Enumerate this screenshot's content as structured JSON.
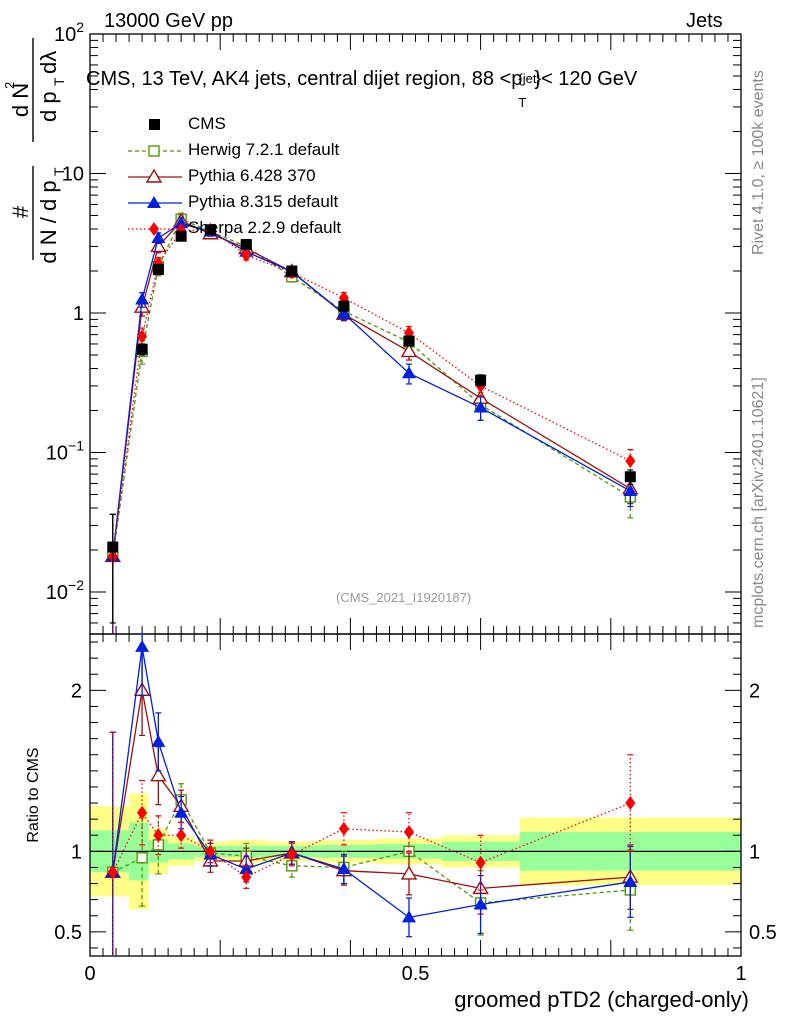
{
  "header": {
    "left": "13000 GeV pp",
    "right": "Jets"
  },
  "side_labels": {
    "rivet": "Rivet 4.1.0, ≥ 100k events",
    "mcplots": "mcplots.cern.ch [arXiv:2401.10621]"
  },
  "watermark": "(CMS_2021_I1920187)",
  "colors": {
    "cms": "#000000",
    "herwig": "#4e9a06",
    "pythia6": "#a01010",
    "pythia8": "#0020e0",
    "sherpa": "#ff0000",
    "band_inner": "#99ff99",
    "band_outer": "#ffff88"
  },
  "chart_data": [
    {
      "type": "scatter",
      "panel": "main",
      "title": "CMS, 13 TeV, AK4 jets, central dijet region, 88 <p_T^{jet}< 120 GeV",
      "title_parts": {
        "main": "CMS, 13 TeV, AK4 jets, central dijet region, 88 <p",
        "sup": "{jet}",
        "sub": "T",
        "tail": "}< 120 GeV"
      },
      "ylabel_parts": {
        "num": "#",
        "den": "d N / d p",
        "den_sub": "T",
        "num2": "d N",
        "num2_sup": "2",
        "den2": "d p",
        "den2_sub": "T",
        "den2_tail": " dλ"
      },
      "xlim": [
        0,
        1
      ],
      "ylim": [
        0.005,
        100
      ],
      "ylog": true,
      "y_ticks": [
        {
          "v": 100,
          "base": "10",
          "exp": "2"
        },
        {
          "v": 10,
          "base": "10",
          "exp": ""
        },
        {
          "v": 1,
          "base": "1",
          "exp": ""
        },
        {
          "v": 0.1,
          "base": "10",
          "exp": "−1"
        },
        {
          "v": 0.01,
          "base": "10",
          "exp": "−2"
        }
      ],
      "x": [
        0.035,
        0.08,
        0.105,
        0.14,
        0.185,
        0.24,
        0.31,
        0.39,
        0.49,
        0.6,
        0.83
      ],
      "series": [
        {
          "name": "CMS",
          "key": "cms",
          "marker": "square",
          "line": "none",
          "values": [
            0.021,
            0.55,
            2.05,
            3.55,
            3.95,
            3.1,
            2.0,
            1.12,
            0.63,
            0.33,
            0.067
          ],
          "errors": [
            0.015,
            0.05,
            0.1,
            0.15,
            0.15,
            0.12,
            0.08,
            0.06,
            0.04,
            0.03,
            0.008
          ]
        },
        {
          "name": "Herwig 7.2.1 default",
          "key": "herwig",
          "marker": "open-square",
          "line": "dashed",
          "values": [
            0.018,
            0.53,
            2.15,
            4.7,
            3.85,
            3.0,
            1.82,
            1.03,
            0.62,
            0.22,
            0.048
          ],
          "errors": [
            0.018,
            0.1,
            0.3,
            0.5,
            0.3,
            0.25,
            0.15,
            0.1,
            0.08,
            0.05,
            0.014
          ]
        },
        {
          "name": "Pythia 6.428 370",
          "key": "pythia6",
          "marker": "open-triangle",
          "line": "solid",
          "values": [
            0.018,
            1.1,
            3.0,
            4.55,
            3.7,
            2.9,
            1.98,
            0.98,
            0.53,
            0.245,
            0.055
          ],
          "errors": [
            0.018,
            0.15,
            0.3,
            0.4,
            0.3,
            0.25,
            0.15,
            0.1,
            0.07,
            0.045,
            0.012
          ]
        },
        {
          "name": "Pythia 8.315 default",
          "key": "pythia8",
          "marker": "triangle",
          "line": "solid",
          "values": [
            0.018,
            1.25,
            3.45,
            4.4,
            3.85,
            2.75,
            1.98,
            0.99,
            0.37,
            0.21,
            0.053
          ],
          "errors": [
            0.018,
            0.15,
            0.3,
            0.4,
            0.3,
            0.25,
            0.15,
            0.1,
            0.06,
            0.04,
            0.012
          ]
        },
        {
          "name": "Sherpa 2.2.9 default",
          "key": "sherpa",
          "marker": "diamond",
          "line": "dotted",
          "values": [
            0.018,
            0.68,
            2.25,
            3.9,
            3.95,
            2.6,
            1.95,
            1.28,
            0.72,
            0.3,
            0.087
          ],
          "errors": [
            0.018,
            0.1,
            0.25,
            0.35,
            0.3,
            0.2,
            0.15,
            0.12,
            0.08,
            0.045,
            0.018
          ]
        }
      ]
    },
    {
      "type": "scatter",
      "panel": "ratio",
      "ylabel": "Ratio to CMS",
      "xlabel": "groomed pTD2 (charged-only)",
      "xlim": [
        0,
        1
      ],
      "ylim": [
        0.35,
        2.35
      ],
      "x_ticks": [
        {
          "v": 0,
          "label": "0"
        },
        {
          "v": 0.5,
          "label": "0.5"
        },
        {
          "v": 1,
          "label": "1"
        }
      ],
      "y_ticks": [
        {
          "v": 2,
          "label": "2"
        },
        {
          "v": 1,
          "label": "1"
        },
        {
          "v": 0.5,
          "label": "0.5"
        }
      ],
      "band_bins": [
        0.0,
        0.06,
        0.09,
        0.12,
        0.16,
        0.21,
        0.27,
        0.35,
        0.44,
        0.54,
        0.66,
        1.0
      ],
      "band_inner": [
        0.13,
        0.18,
        0.07,
        0.05,
        0.035,
        0.035,
        0.035,
        0.04,
        0.045,
        0.06,
        0.12
      ],
      "band_outer": [
        0.28,
        0.36,
        0.14,
        0.09,
        0.06,
        0.07,
        0.06,
        0.07,
        0.08,
        0.1,
        0.21
      ],
      "x": [
        0.035,
        0.08,
        0.105,
        0.14,
        0.185,
        0.24,
        0.31,
        0.39,
        0.49,
        0.6,
        0.83
      ],
      "series": [
        {
          "name": "Herwig 7.2.1 default",
          "key": "herwig",
          "marker": "open-square",
          "line": "dashed",
          "values": [
            0.87,
            0.96,
            1.04,
            1.32,
            0.99,
            0.97,
            0.91,
            0.9,
            1.0,
            0.68,
            0.76
          ],
          "errors": [
            0.87,
            0.3,
            0.18,
            0.1,
            0.08,
            0.08,
            0.07,
            0.1,
            0.14,
            0.2,
            0.25
          ]
        },
        {
          "name": "Pythia 6.428 370",
          "key": "pythia6",
          "marker": "open-triangle",
          "line": "solid",
          "values": [
            0.87,
            2.0,
            1.47,
            1.28,
            0.94,
            0.94,
            0.99,
            0.88,
            0.86,
            0.77,
            0.84
          ],
          "errors": [
            0.87,
            0.28,
            0.18,
            0.1,
            0.07,
            0.08,
            0.07,
            0.09,
            0.13,
            0.16,
            0.2
          ]
        },
        {
          "name": "Pythia 8.315 default",
          "key": "pythia8",
          "marker": "triangle",
          "line": "solid",
          "values": [
            0.87,
            2.27,
            1.68,
            1.24,
            0.98,
            0.89,
            0.99,
            0.89,
            0.59,
            0.67,
            0.81
          ],
          "errors": [
            0.87,
            0.3,
            0.18,
            0.1,
            0.07,
            0.08,
            0.07,
            0.09,
            0.12,
            0.18,
            0.22
          ]
        },
        {
          "name": "Sherpa 2.2.9 default",
          "key": "sherpa",
          "marker": "diamond",
          "line": "dotted",
          "values": [
            0.87,
            1.24,
            1.1,
            1.1,
            1.0,
            0.84,
            0.98,
            1.14,
            1.12,
            0.93,
            1.3
          ],
          "errors": [
            0.87,
            0.2,
            0.12,
            0.08,
            0.07,
            0.07,
            0.07,
            0.1,
            0.12,
            0.17,
            0.3
          ]
        }
      ]
    }
  ]
}
